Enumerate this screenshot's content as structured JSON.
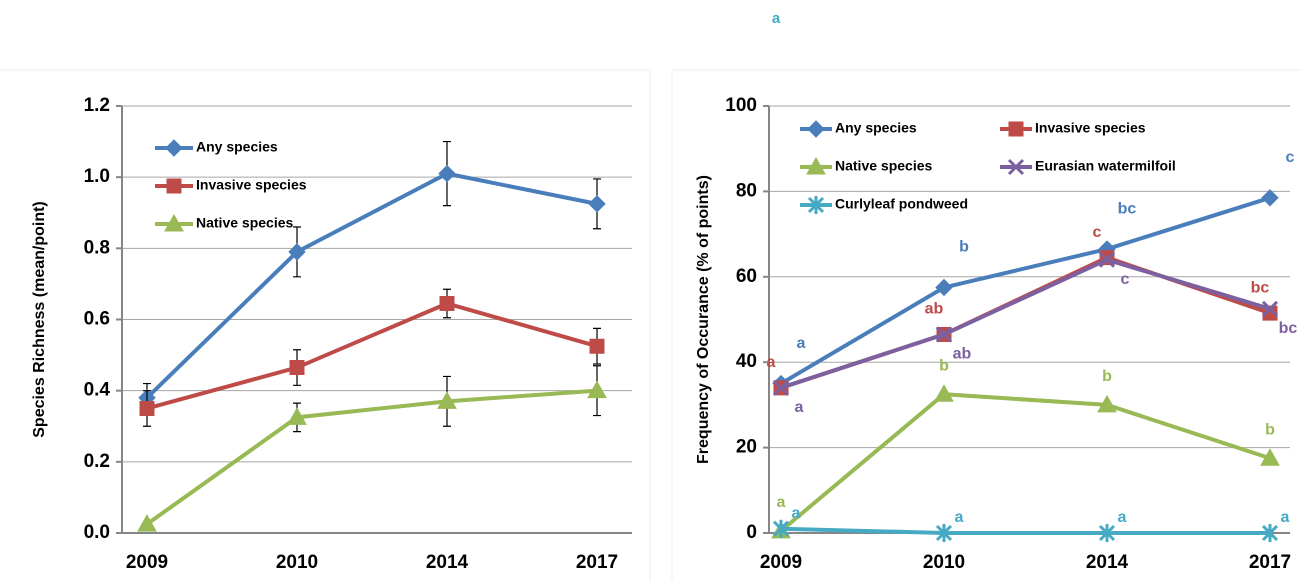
{
  "chart_data": [
    {
      "type": "line",
      "y_label": "Species Richness (mean/point)",
      "categories": [
        "2009",
        "2010",
        "2014",
        "2017"
      ],
      "ylim": [
        0,
        1.2
      ],
      "yticks": [
        {
          "value": 0,
          "label": "0.0"
        },
        0.2,
        0.4,
        0.6,
        0.8,
        {
          "value": 1,
          "label": "1.0"
        },
        1.2
      ],
      "grid": true,
      "legend": "upper left",
      "series": [
        {
          "name": "Any species",
          "color": "#4a7ebb",
          "marker": "diamond",
          "values": [
            0.38,
            0.79,
            1.01,
            0.925
          ],
          "errors": [
            0.04,
            0.07,
            0.09,
            0.07
          ]
        },
        {
          "name": "Invasive species",
          "color": "#be4b48",
          "marker": "square",
          "values": [
            0.35,
            0.465,
            0.645,
            0.525
          ],
          "errors": [
            0.05,
            0.05,
            0.04,
            0.05
          ]
        },
        {
          "name": "Native species",
          "color": "#98b954",
          "marker": "triangle",
          "values": [
            0.025,
            0.325,
            0.37,
            0.4
          ],
          "errors": [
            0,
            0.04,
            0.07,
            0.07
          ]
        }
      ]
    },
    {
      "type": "line",
      "y_label": "Frequency of Occurance (% of points)",
      "categories": [
        "2009",
        "2010",
        "2014",
        "2017"
      ],
      "ylim": [
        0,
        100
      ],
      "yticks": [
        0,
        20,
        40,
        60,
        80,
        100
      ],
      "grid": true,
      "legend": "upper left",
      "annotations": [
        "a"
      ],
      "series": [
        {
          "name": "Any species",
          "color": "#4a7ebb",
          "marker": "diamond",
          "values": [
            35,
            57.5,
            66.5,
            78.5
          ],
          "letters": [
            "a",
            "b",
            "bc",
            "c"
          ]
        },
        {
          "name": "Invasive species",
          "color": "#be4b48",
          "marker": "square",
          "values": [
            34,
            46.5,
            64.5,
            51.5
          ],
          "letters": [
            "a",
            "ab",
            "c",
            "bc"
          ]
        },
        {
          "name": "Native species",
          "color": "#98b954",
          "marker": "triangle",
          "values": [
            0.5,
            32.5,
            30,
            17.5
          ],
          "letters": [
            "a",
            "b",
            "b",
            "b"
          ]
        },
        {
          "name": "Eurasian watermilfoil",
          "color": "#7d60a0",
          "marker": "x",
          "values": [
            34,
            46.5,
            64,
            52.5
          ],
          "letters": [
            "a",
            "ab",
            "c",
            "bc"
          ]
        },
        {
          "name": "Curlyleaf pondweed",
          "color": "#46aac5",
          "marker": "star",
          "values": [
            1,
            0,
            0,
            0
          ],
          "letters": [
            "a",
            "a",
            "a",
            "a"
          ]
        }
      ]
    }
  ]
}
